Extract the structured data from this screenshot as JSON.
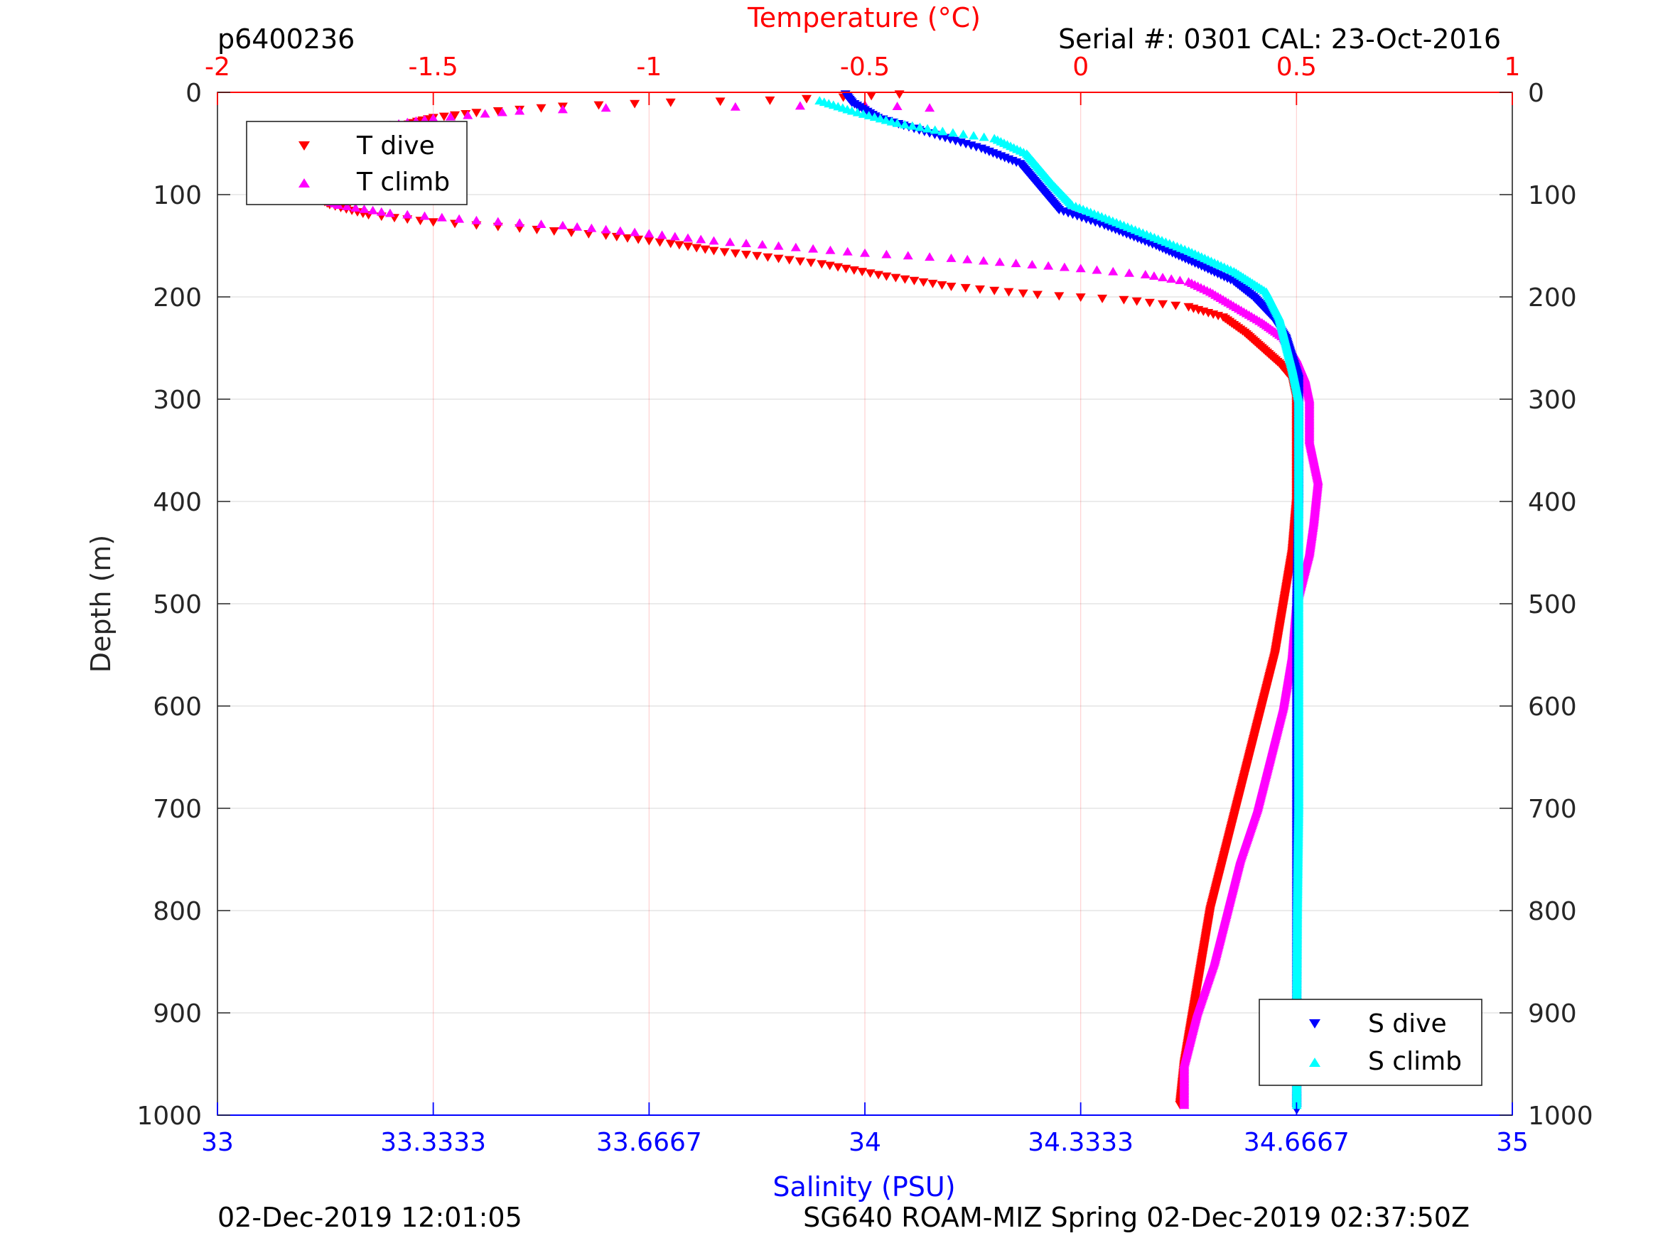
{
  "header": {
    "profile_id": "p6400236",
    "serial": "Serial #: 0301  CAL: 23-Oct-2016"
  },
  "footer": {
    "plot_time": "02-Dec-2019 12:01:05",
    "mission": "SG640 ROAM-MIZ Spring 02-Dec-2019 02:37:50Z"
  },
  "colors": {
    "temp_dive": "#ff0000",
    "temp_climb": "#ff00ff",
    "sal_dive": "#0000ff",
    "sal_climb": "#00ffff",
    "temp_axis": "#ff0000",
    "sal_axis": "#0000ff"
  },
  "chart_data": {
    "type": "scatter",
    "ylabel": "Depth (m)",
    "ylim": [
      0,
      1000
    ],
    "y_reversed": true,
    "y_ticks": [
      "0",
      "100",
      "200",
      "300",
      "400",
      "500",
      "600",
      "700",
      "800",
      "900",
      "1000"
    ],
    "temp_axis": {
      "label": "Temperature (°C)",
      "lim": [
        -2,
        1
      ],
      "ticks": [
        "-2",
        "-1.5",
        "-1",
        "-0.5",
        "0",
        "0.5",
        "1"
      ]
    },
    "sal_axis": {
      "label": "Salinity (PSU)",
      "lim": [
        33,
        35
      ],
      "ticks": [
        "33",
        "33.3333",
        "33.6667",
        "34",
        "34.3333",
        "34.6667",
        "35"
      ]
    },
    "grid": true,
    "legend_temp": {
      "position": "top-left",
      "entries": [
        "T dive",
        "T climb"
      ]
    },
    "legend_sal": {
      "position": "bottom-right",
      "entries": [
        "S dive",
        "S climb"
      ]
    },
    "series": [
      {
        "name": "T dive",
        "axis": "temperature",
        "marker": "triangle-down",
        "points": [
          [
            -0.42,
            2
          ],
          [
            -0.55,
            5
          ],
          [
            -0.72,
            8
          ],
          [
            -0.95,
            10
          ],
          [
            -1.2,
            14
          ],
          [
            -1.4,
            20
          ],
          [
            -1.5,
            25
          ],
          [
            -1.55,
            30
          ],
          [
            -1.6,
            40
          ],
          [
            -1.65,
            50
          ],
          [
            -1.7,
            60
          ],
          [
            -1.75,
            70
          ],
          [
            -1.78,
            80
          ],
          [
            -1.79,
            90
          ],
          [
            -1.78,
            100
          ],
          [
            -1.74,
            110
          ],
          [
            -1.65,
            120
          ],
          [
            -1.5,
            127
          ],
          [
            -1.3,
            133
          ],
          [
            -1.1,
            140
          ],
          [
            -0.95,
            148
          ],
          [
            -0.85,
            155
          ],
          [
            -0.75,
            160
          ],
          [
            -0.6,
            168
          ],
          [
            -0.45,
            180
          ],
          [
            -0.3,
            190
          ],
          [
            -0.1,
            198
          ],
          [
            0.1,
            203
          ],
          [
            0.25,
            210
          ],
          [
            0.33,
            220
          ],
          [
            0.38,
            235
          ],
          [
            0.42,
            250
          ],
          [
            0.46,
            265
          ],
          [
            0.49,
            280
          ],
          [
            0.5,
            300
          ],
          [
            0.5,
            350
          ],
          [
            0.5,
            400
          ],
          [
            0.49,
            450
          ],
          [
            0.47,
            500
          ],
          [
            0.45,
            550
          ],
          [
            0.42,
            600
          ],
          [
            0.39,
            650
          ],
          [
            0.36,
            700
          ],
          [
            0.33,
            750
          ],
          [
            0.3,
            800
          ],
          [
            0.28,
            850
          ],
          [
            0.26,
            900
          ],
          [
            0.24,
            950
          ],
          [
            0.23,
            990
          ]
        ]
      },
      {
        "name": "T climb",
        "axis": "temperature",
        "marker": "triangle-up",
        "points": [
          [
            -0.35,
            15
          ],
          [
            -0.5,
            12
          ],
          [
            -0.8,
            14
          ],
          [
            -1.1,
            15
          ],
          [
            -1.3,
            18
          ],
          [
            -1.5,
            25
          ],
          [
            -1.6,
            32
          ],
          [
            -1.68,
            40
          ],
          [
            -1.72,
            50
          ],
          [
            -1.74,
            65
          ],
          [
            -1.77,
            80
          ],
          [
            -1.79,
            90
          ],
          [
            -1.78,
            100
          ],
          [
            -1.72,
            110
          ],
          [
            -1.6,
            118
          ],
          [
            -1.4,
            125
          ],
          [
            -1.2,
            130
          ],
          [
            -1.0,
            138
          ],
          [
            -0.85,
            145
          ],
          [
            -0.7,
            150
          ],
          [
            -0.5,
            157
          ],
          [
            -0.3,
            162
          ],
          [
            -0.15,
            167
          ],
          [
            0.0,
            172
          ],
          [
            0.15,
            178
          ],
          [
            0.25,
            185
          ],
          [
            0.3,
            195
          ],
          [
            0.36,
            210
          ],
          [
            0.42,
            225
          ],
          [
            0.47,
            240
          ],
          [
            0.5,
            260
          ],
          [
            0.52,
            280
          ],
          [
            0.53,
            300
          ],
          [
            0.53,
            340
          ],
          [
            0.55,
            380
          ],
          [
            0.54,
            420
          ],
          [
            0.53,
            450
          ],
          [
            0.5,
            500
          ],
          [
            0.49,
            550
          ],
          [
            0.47,
            600
          ],
          [
            0.44,
            650
          ],
          [
            0.41,
            700
          ],
          [
            0.37,
            750
          ],
          [
            0.34,
            800
          ],
          [
            0.31,
            850
          ],
          [
            0.27,
            900
          ],
          [
            0.24,
            950
          ],
          [
            0.24,
            990
          ]
        ]
      },
      {
        "name": "S dive",
        "axis": "salinity",
        "marker": "triangle-down",
        "points": [
          [
            33.97,
            2
          ],
          [
            33.98,
            10
          ],
          [
            34.02,
            25
          ],
          [
            34.1,
            40
          ],
          [
            34.18,
            55
          ],
          [
            34.24,
            70
          ],
          [
            34.26,
            85
          ],
          [
            34.28,
            100
          ],
          [
            34.3,
            115
          ],
          [
            34.37,
            130
          ],
          [
            34.45,
            150
          ],
          [
            34.52,
            170
          ],
          [
            34.57,
            185
          ],
          [
            34.6,
            200
          ],
          [
            34.63,
            220
          ],
          [
            34.65,
            240
          ],
          [
            34.66,
            260
          ],
          [
            34.67,
            280
          ],
          [
            34.67,
            300
          ],
          [
            34.67,
            400
          ],
          [
            34.667,
            500
          ],
          [
            34.667,
            600
          ],
          [
            34.667,
            700
          ],
          [
            34.667,
            800
          ],
          [
            34.667,
            900
          ],
          [
            34.667,
            995
          ]
        ]
      },
      {
        "name": "S climb",
        "axis": "salinity",
        "marker": "triangle-up",
        "points": [
          [
            33.93,
            8
          ],
          [
            33.98,
            18
          ],
          [
            34.05,
            30
          ],
          [
            34.12,
            38
          ],
          [
            34.2,
            45
          ],
          [
            34.25,
            60
          ],
          [
            34.27,
            75
          ],
          [
            34.29,
            90
          ],
          [
            34.32,
            110
          ],
          [
            34.4,
            130
          ],
          [
            34.5,
            155
          ],
          [
            34.57,
            175
          ],
          [
            34.62,
            195
          ],
          [
            34.64,
            220
          ],
          [
            34.65,
            245
          ],
          [
            34.66,
            270
          ],
          [
            34.67,
            300
          ],
          [
            34.67,
            400
          ],
          [
            34.67,
            500
          ],
          [
            34.67,
            600
          ],
          [
            34.67,
            700
          ],
          [
            34.668,
            800
          ],
          [
            34.667,
            900
          ],
          [
            34.667,
            990
          ]
        ]
      }
    ]
  }
}
